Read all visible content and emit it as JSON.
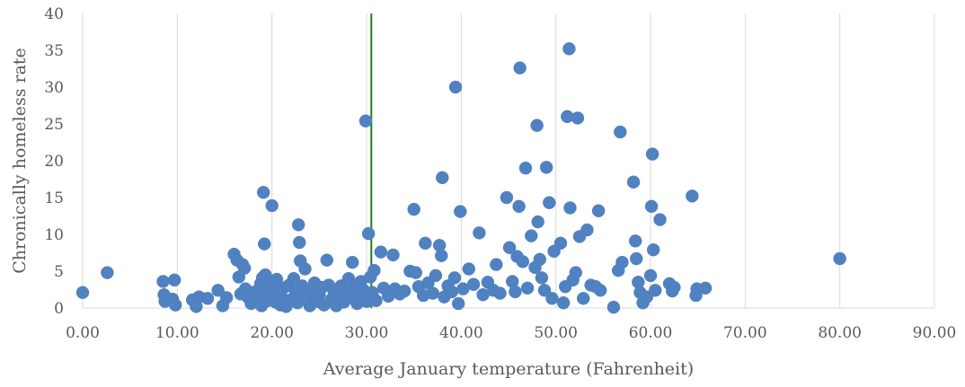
{
  "colors": {
    "marker": "#5081c0",
    "reference_line": "#1e7d1e",
    "gridline": "#d9d9d9",
    "text": "#595959"
  },
  "chart_data": {
    "type": "scatter",
    "title": "",
    "xlabel": "Average January temperature (Fahrenheit)",
    "ylabel": "Chronically homeless rate",
    "xlim": [
      0,
      90
    ],
    "ylim": [
      0,
      40
    ],
    "x_ticks": [
      "0.00",
      "10.00",
      "20.00",
      "30.00",
      "40.00",
      "50.00",
      "60.00",
      "70.00",
      "80.00",
      "90.00"
    ],
    "y_ticks": [
      "0",
      "5",
      "10",
      "15",
      "20",
      "25",
      "30",
      "35",
      "40"
    ],
    "grid": "vertical",
    "legend": "none",
    "reference_line": {
      "orientation": "vertical",
      "x": 30.5
    },
    "series": [
      {
        "points": [
          [
            0.0,
            2.1
          ],
          [
            2.6,
            4.8
          ],
          [
            8.5,
            3.6
          ],
          [
            8.6,
            1.8
          ],
          [
            8.7,
            0.9
          ],
          [
            9.5,
            1.2
          ],
          [
            9.7,
            3.8
          ],
          [
            9.8,
            0.4
          ],
          [
            11.6,
            1.1
          ],
          [
            12.0,
            0.2
          ],
          [
            12.3,
            1.5
          ],
          [
            13.2,
            1.3
          ],
          [
            14.3,
            2.4
          ],
          [
            14.8,
            0.3
          ],
          [
            15.2,
            1.4
          ],
          [
            16.0,
            7.3
          ],
          [
            16.3,
            6.5
          ],
          [
            16.5,
            4.2
          ],
          [
            16.7,
            1.9
          ],
          [
            16.9,
            5.9
          ],
          [
            17.1,
            5.4
          ],
          [
            17.2,
            2.6
          ],
          [
            17.5,
            1.4
          ],
          [
            17.8,
            0.6
          ],
          [
            18.0,
            1.2
          ],
          [
            18.2,
            2.2
          ],
          [
            18.4,
            0.9
          ],
          [
            18.6,
            1.9
          ],
          [
            18.8,
            3.3
          ],
          [
            18.9,
            0.3
          ],
          [
            19.0,
            4.1
          ],
          [
            19.1,
            15.7
          ],
          [
            19.2,
            8.7
          ],
          [
            19.3,
            4.5
          ],
          [
            19.5,
            2.0
          ],
          [
            19.6,
            1.0
          ],
          [
            19.8,
            3.6
          ],
          [
            20.0,
            13.9
          ],
          [
            20.1,
            2.6
          ],
          [
            20.2,
            1.8
          ],
          [
            20.4,
            0.8
          ],
          [
            20.5,
            3.9
          ],
          [
            20.7,
            2.2
          ],
          [
            20.9,
            0.4
          ],
          [
            21.0,
            1.5
          ],
          [
            21.2,
            2.7
          ],
          [
            21.5,
            0.2
          ],
          [
            21.8,
            3.1
          ],
          [
            22.0,
            1.1
          ],
          [
            22.3,
            4.0
          ],
          [
            22.5,
            2.1
          ],
          [
            22.7,
            0.7
          ],
          [
            22.8,
            11.3
          ],
          [
            22.9,
            8.9
          ],
          [
            23.0,
            6.4
          ],
          [
            23.2,
            3.0
          ],
          [
            23.5,
            5.3
          ],
          [
            23.7,
            1.6
          ],
          [
            24.0,
            0.3
          ],
          [
            24.2,
            2.4
          ],
          [
            24.5,
            3.4
          ],
          [
            24.8,
            0.9
          ],
          [
            25.0,
            1.8
          ],
          [
            25.3,
            2.8
          ],
          [
            25.5,
            0.4
          ],
          [
            25.8,
            6.5
          ],
          [
            26.0,
            3.1
          ],
          [
            26.3,
            1.2
          ],
          [
            26.5,
            2.5
          ],
          [
            26.8,
            0.3
          ],
          [
            27.0,
            1.9
          ],
          [
            27.3,
            3.0
          ],
          [
            27.6,
            0.8
          ],
          [
            27.9,
            2.2
          ],
          [
            28.1,
            4.0
          ],
          [
            28.3,
            1.4
          ],
          [
            28.5,
            6.2
          ],
          [
            28.7,
            2.9
          ],
          [
            29.0,
            0.6
          ],
          [
            29.2,
            1.7
          ],
          [
            29.4,
            3.6
          ],
          [
            29.7,
            2.4
          ],
          [
            29.9,
            25.4
          ],
          [
            30.0,
            0.9
          ],
          [
            30.2,
            10.1
          ],
          [
            30.4,
            4.2
          ],
          [
            30.6,
            2.1
          ],
          [
            30.8,
            5.1
          ],
          [
            31.0,
            1.0
          ],
          [
            31.5,
            7.6
          ],
          [
            31.8,
            2.7
          ],
          [
            32.3,
            1.6
          ],
          [
            32.8,
            7.2
          ],
          [
            33.0,
            2.6
          ],
          [
            33.5,
            1.9
          ],
          [
            34.0,
            2.3
          ],
          [
            34.6,
            5.0
          ],
          [
            35.0,
            13.4
          ],
          [
            35.2,
            4.8
          ],
          [
            35.5,
            2.9
          ],
          [
            36.0,
            1.7
          ],
          [
            36.2,
            8.8
          ],
          [
            36.5,
            3.4
          ],
          [
            37.0,
            2.0
          ],
          [
            37.3,
            4.4
          ],
          [
            37.7,
            8.5
          ],
          [
            37.9,
            7.1
          ],
          [
            38.0,
            17.7
          ],
          [
            38.2,
            1.5
          ],
          [
            38.6,
            3.0
          ],
          [
            39.0,
            2.2
          ],
          [
            39.3,
            4.1
          ],
          [
            39.4,
            30.0
          ],
          [
            39.7,
            0.6
          ],
          [
            39.9,
            13.1
          ],
          [
            40.2,
            2.6
          ],
          [
            40.8,
            5.3
          ],
          [
            41.3,
            3.2
          ],
          [
            41.9,
            10.2
          ],
          [
            42.3,
            1.8
          ],
          [
            42.8,
            3.5
          ],
          [
            43.4,
            2.4
          ],
          [
            43.7,
            5.9
          ],
          [
            44.1,
            2.0
          ],
          [
            44.8,
            15.0
          ],
          [
            45.1,
            8.2
          ],
          [
            45.4,
            3.6
          ],
          [
            45.7,
            2.2
          ],
          [
            45.9,
            7.0
          ],
          [
            46.1,
            13.8
          ],
          [
            46.2,
            32.6
          ],
          [
            46.5,
            6.3
          ],
          [
            46.8,
            19.0
          ],
          [
            47.0,
            2.7
          ],
          [
            47.4,
            9.8
          ],
          [
            47.8,
            5.5
          ],
          [
            48.1,
            11.7
          ],
          [
            48.0,
            24.8
          ],
          [
            48.3,
            6.6
          ],
          [
            48.5,
            4.1
          ],
          [
            48.8,
            2.4
          ],
          [
            49.0,
            19.1
          ],
          [
            49.3,
            14.3
          ],
          [
            49.6,
            1.3
          ],
          [
            49.8,
            7.7
          ],
          [
            50.5,
            8.8
          ],
          [
            50.8,
            0.7
          ],
          [
            51.0,
            2.9
          ],
          [
            51.2,
            26.0
          ],
          [
            51.4,
            35.2
          ],
          [
            51.5,
            13.6
          ],
          [
            51.8,
            3.8
          ],
          [
            52.1,
            4.8
          ],
          [
            52.3,
            25.8
          ],
          [
            52.5,
            9.7
          ],
          [
            52.9,
            1.3
          ],
          [
            53.3,
            10.6
          ],
          [
            53.7,
            3.1
          ],
          [
            54.2,
            2.9
          ],
          [
            54.5,
            13.2
          ],
          [
            54.7,
            2.4
          ],
          [
            56.1,
            0.1
          ],
          [
            56.6,
            5.1
          ],
          [
            56.8,
            23.9
          ],
          [
            57.0,
            6.2
          ],
          [
            58.2,
            17.1
          ],
          [
            58.4,
            9.1
          ],
          [
            58.5,
            6.7
          ],
          [
            58.7,
            3.5
          ],
          [
            58.9,
            2.1
          ],
          [
            59.2,
            0.7
          ],
          [
            59.6,
            1.5
          ],
          [
            60.0,
            4.4
          ],
          [
            60.1,
            13.8
          ],
          [
            60.2,
            20.9
          ],
          [
            60.3,
            7.9
          ],
          [
            60.5,
            2.4
          ],
          [
            61.0,
            12.0
          ],
          [
            62.0,
            3.3
          ],
          [
            62.3,
            2.3
          ],
          [
            62.5,
            2.8
          ],
          [
            64.4,
            15.2
          ],
          [
            64.8,
            1.7
          ],
          [
            64.9,
            2.6
          ],
          [
            65.8,
            2.7
          ],
          [
            80.0,
            6.7
          ]
        ]
      }
    ]
  }
}
